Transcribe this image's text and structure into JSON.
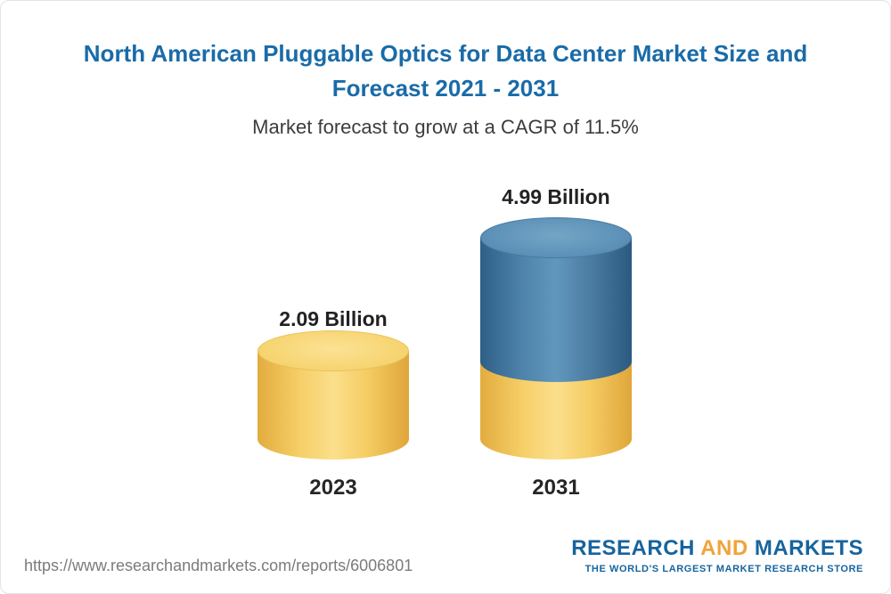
{
  "chart_data": {
    "type": "bar",
    "style": "3d-cylinder",
    "title": "North American Pluggable Optics for Data Center Market Size and Forecast 2021 - 2031",
    "subtitle": "Market forecast to grow at a CAGR of 11.5%",
    "categories": [
      "2023",
      "2031"
    ],
    "values": [
      2.09,
      4.99
    ],
    "value_labels": [
      "2.09 Billion",
      "4.99 Billion"
    ],
    "stacked_2031_segments": {
      "base_yellow": 2.09,
      "growth_blue": 2.9
    },
    "axes": {
      "x_labels": [
        "2023",
        "2031"
      ],
      "gridlines": false,
      "legend": "none"
    },
    "colors": {
      "cylinder_yellow": "#F5CD64",
      "cylinder_blue": "#4C80A8",
      "title_blue": "#1A6BA8",
      "label_text": "#222222"
    }
  },
  "footer": {
    "url": "https://www.researchandmarkets.com/reports/6006801",
    "logo": {
      "word1": "RESEARCH",
      "word2": "AND",
      "word3": "MARKETS",
      "tagline": "THE WORLD'S LARGEST MARKET RESEARCH STORE",
      "blue": "#16649E",
      "orange": "#F1A33A"
    }
  }
}
